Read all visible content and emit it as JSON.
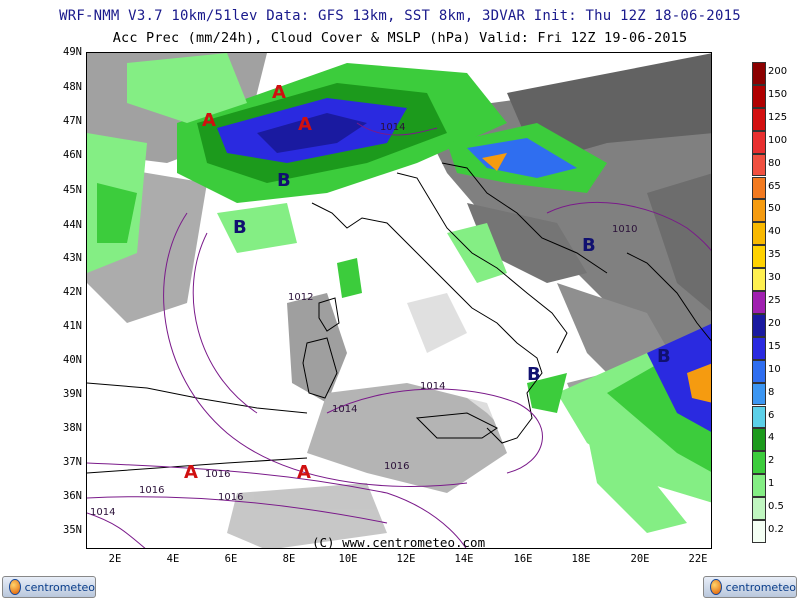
{
  "header": {
    "line1": "WRF-NMM V3.7 10km/51lev  Data: GFS 13km, SST 8km, 3DVAR  Init: Thu 12Z 18-06-2015",
    "line2": "Acc Prec (mm/24h), Cloud Cover & MSLP (hPa)  Valid: Fri 12Z 19-06-2015"
  },
  "lat_labels": [
    "49N",
    "48N",
    "47N",
    "46N",
    "45N",
    "44N",
    "43N",
    "42N",
    "41N",
    "40N",
    "39N",
    "38N",
    "37N",
    "36N",
    "35N"
  ],
  "lon_labels": [
    "2E",
    "4E",
    "6E",
    "8E",
    "10E",
    "12E",
    "14E",
    "16E",
    "18E",
    "20E",
    "22E"
  ],
  "credit": "(C) www.centrometeo.com",
  "logo_text": "centrometeo",
  "colorbar": {
    "labels": [
      "200",
      "150",
      "125",
      "100",
      "80",
      "65",
      "50",
      "40",
      "35",
      "30",
      "25",
      "20",
      "15",
      "10",
      "8",
      "6",
      "4",
      "2",
      "1",
      "0.5",
      "0.2"
    ],
    "colors": [
      "#8b0000",
      "#b00000",
      "#d21010",
      "#e83030",
      "#f05040",
      "#f27a20",
      "#f59b10",
      "#f8b800",
      "#ffd200",
      "#fff050",
      "#a020b0",
      "#1a1aa0",
      "#2a2ae0",
      "#2f6ef0",
      "#3c96f2",
      "#5cd0e8",
      "#1c9a1c",
      "#3ccc3c",
      "#84ee84",
      "#c0f6c0",
      "#f4fff4"
    ]
  },
  "pressure_centers": [
    {
      "type": "A",
      "label": "A",
      "color": "#d01010"
    },
    {
      "type": "A",
      "label": "A",
      "color": "#d01010"
    },
    {
      "type": "A",
      "label": "A",
      "color": "#d01010"
    },
    {
      "type": "B",
      "label": "B",
      "color": "#101070"
    },
    {
      "type": "B",
      "label": "B",
      "color": "#101070"
    },
    {
      "type": "B",
      "label": "B",
      "color": "#101070"
    },
    {
      "type": "B",
      "label": "B",
      "color": "#101070"
    },
    {
      "type": "B",
      "label": "B",
      "color": "#101070"
    },
    {
      "type": "A",
      "label": "A",
      "color": "#d01010"
    },
    {
      "type": "A",
      "label": "A",
      "color": "#d01010"
    }
  ],
  "isobar_labels": [
    "1014",
    "1010",
    "1012",
    "1014",
    "1014",
    "1016",
    "1016",
    "1016",
    "1016",
    "1014"
  ]
}
